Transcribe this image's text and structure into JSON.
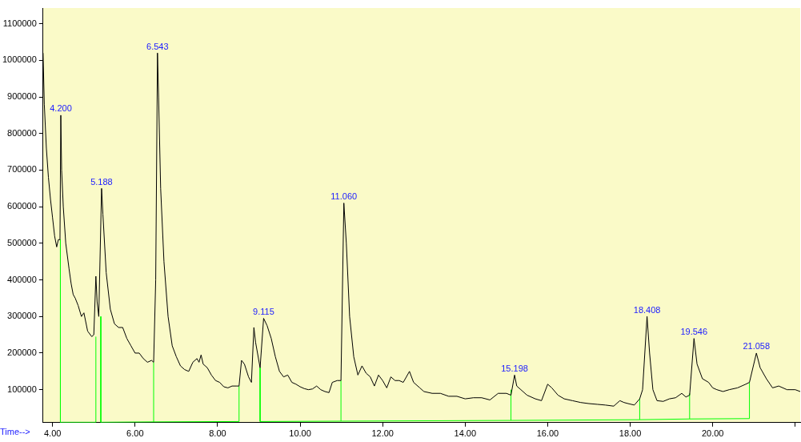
{
  "chart_data": {
    "type": "line",
    "xlabel": "Time-->",
    "x": [
      3.77,
      3.8,
      3.85,
      3.9,
      3.95,
      4.0,
      4.05,
      4.1,
      4.14,
      4.18,
      4.2,
      4.22,
      4.26,
      4.32,
      4.4,
      4.45,
      4.5,
      4.55,
      4.62,
      4.7,
      4.76,
      4.85,
      4.95,
      5.0,
      5.05,
      5.08,
      5.12,
      5.188,
      5.22,
      5.3,
      5.4,
      5.5,
      5.6,
      5.7,
      5.8,
      5.9,
      6.0,
      6.1,
      6.2,
      6.3,
      6.4,
      6.45,
      6.5,
      6.543,
      6.57,
      6.62,
      6.7,
      6.8,
      6.9,
      7.0,
      7.1,
      7.2,
      7.3,
      7.4,
      7.5,
      7.55,
      7.6,
      7.65,
      7.75,
      7.85,
      7.95,
      8.05,
      8.15,
      8.25,
      8.35,
      8.45,
      8.52,
      8.58,
      8.65,
      8.75,
      8.82,
      8.88,
      8.92,
      9.03,
      9.115,
      9.2,
      9.3,
      9.4,
      9.5,
      9.6,
      9.7,
      9.8,
      9.9,
      10.0,
      10.1,
      10.2,
      10.3,
      10.4,
      10.5,
      10.6,
      10.7,
      10.78,
      10.9,
      10.99,
      11.06,
      11.12,
      11.2,
      11.3,
      11.4,
      11.5,
      11.6,
      11.7,
      11.8,
      11.9,
      12.0,
      12.1,
      12.2,
      12.3,
      12.4,
      12.5,
      12.65,
      12.75,
      12.9,
      13.0,
      13.2,
      13.4,
      13.6,
      13.8,
      14.0,
      14.2,
      14.4,
      14.6,
      14.8,
      15.0,
      15.11,
      15.198,
      15.25,
      15.35,
      15.5,
      15.7,
      15.85,
      16.0,
      16.1,
      16.25,
      16.4,
      16.6,
      16.8,
      17.0,
      17.2,
      17.4,
      17.6,
      17.75,
      17.85,
      17.95,
      18.1,
      18.23,
      18.3,
      18.408,
      18.47,
      18.55,
      18.65,
      18.8,
      18.95,
      19.1,
      19.25,
      19.35,
      19.44,
      19.546,
      19.62,
      19.75,
      19.9,
      20.0,
      20.1,
      20.25,
      20.4,
      20.6,
      20.8,
      20.89,
      21.058,
      21.15,
      21.3,
      21.45,
      21.6,
      21.8,
      22.0,
      22.12
    ],
    "series": [
      {
        "color": "#000000",
        "values": [
          1020000,
          880000,
          760000,
          680000,
          620000,
          570000,
          520000,
          490000,
          510000,
          510000,
          850000,
          700000,
          600000,
          500000,
          430000,
          390000,
          360000,
          350000,
          330000,
          300000,
          310000,
          260000,
          245000,
          250000,
          410000,
          340000,
          300000,
          650000,
          580000,
          420000,
          320000,
          280000,
          270000,
          270000,
          240000,
          220000,
          200000,
          200000,
          185000,
          175000,
          180000,
          175000,
          400000,
          1020000,
          900000,
          650000,
          450000,
          300000,
          220000,
          190000,
          165000,
          155000,
          150000,
          175000,
          185000,
          175000,
          195000,
          170000,
          160000,
          140000,
          125000,
          120000,
          108000,
          105000,
          110000,
          110000,
          110000,
          180000,
          170000,
          135000,
          120000,
          270000,
          230000,
          160000,
          295000,
          275000,
          240000,
          190000,
          150000,
          135000,
          140000,
          120000,
          115000,
          108000,
          103000,
          100000,
          102000,
          110000,
          100000,
          95000,
          92000,
          120000,
          125000,
          125000,
          610000,
          500000,
          300000,
          190000,
          140000,
          165000,
          145000,
          135000,
          110000,
          140000,
          125000,
          105000,
          135000,
          125000,
          125000,
          120000,
          150000,
          120000,
          105000,
          95000,
          90000,
          90000,
          82000,
          82000,
          75000,
          78000,
          78000,
          72000,
          90000,
          90000,
          85000,
          140000,
          110000,
          100000,
          85000,
          75000,
          70000,
          115000,
          105000,
          85000,
          75000,
          70000,
          65000,
          62000,
          60000,
          58000,
          55000,
          70000,
          65000,
          62000,
          58000,
          75000,
          100000,
          300000,
          200000,
          100000,
          70000,
          68000,
          75000,
          78000,
          90000,
          80000,
          85000,
          240000,
          170000,
          130000,
          120000,
          105000,
          100000,
          95000,
          100000,
          105000,
          115000,
          120000,
          200000,
          160000,
          130000,
          105000,
          110000,
          100000,
          100000,
          95000
        ]
      },
      {
        "color": "#00ff00",
        "x": [
          4.19,
          4.19,
          5.05,
          5.05
        ],
        "values": [
          510000,
          11000,
          11000,
          245000
        ]
      },
      {
        "color": "#00ff00",
        "x": [
          5.17,
          5.17,
          6.45,
          6.45
        ],
        "values": [
          300000,
          11000,
          12000,
          175000
        ]
      },
      {
        "color": "#00ff00",
        "x": [
          6.45,
          8.52,
          8.52
        ],
        "values": [
          12000,
          13000,
          110000
        ]
      },
      {
        "color": "#00ff00",
        "x": [
          9.03,
          9.03,
          10.99,
          10.99
        ],
        "values": [
          160000,
          13000,
          14000,
          125000
        ]
      },
      {
        "color": "#00ff00",
        "x": [
          10.99,
          15.11,
          15.11
        ],
        "values": [
          14000,
          16000,
          100000
        ]
      },
      {
        "color": "#00ff00",
        "x": [
          15.11,
          18.23,
          18.23
        ],
        "values": [
          16000,
          18000,
          75000
        ]
      },
      {
        "color": "#00ff00",
        "x": [
          18.23,
          19.44,
          19.44
        ],
        "values": [
          18000,
          20000,
          90000
        ]
      },
      {
        "color": "#00ff00",
        "x": [
          19.44,
          20.89,
          20.89
        ],
        "values": [
          20000,
          21000,
          120000
        ]
      }
    ],
    "xlim": [
      3.77,
      22.12
    ],
    "xticks": [
      {
        "value": 4,
        "label": "4.00"
      },
      {
        "value": 6,
        "label": "6.00"
      },
      {
        "value": 8,
        "label": "8.00"
      },
      {
        "value": 10,
        "label": "10.00"
      },
      {
        "value": 12,
        "label": "12.00"
      },
      {
        "value": 14,
        "label": "14.00"
      },
      {
        "value": 16,
        "label": "16.00"
      },
      {
        "value": 18,
        "label": "18.00"
      },
      {
        "value": 20,
        "label": "20.00"
      },
      {
        "value": 22,
        "label": null
      }
    ],
    "ylim": [
      10000,
      1143000
    ],
    "yticks": [
      100000,
      200000,
      300000,
      400000,
      500000,
      600000,
      700000,
      800000,
      900000,
      1000000,
      1100000
    ],
    "grid": false,
    "legend": false,
    "marker": "none",
    "line_style": "solid",
    "annotations": [
      {
        "text": "4.200",
        "x": 4.2,
        "y": 850000
      },
      {
        "text": "5.188",
        "x": 5.188,
        "y": 650000
      },
      {
        "text": "6.543",
        "x": 6.543,
        "y": 1020000
      },
      {
        "text": "9.115",
        "x": 9.115,
        "y": 295000
      },
      {
        "text": "11.060",
        "x": 11.06,
        "y": 610000
      },
      {
        "text": "15.198",
        "x": 15.198,
        "y": 140000
      },
      {
        "text": "18.408",
        "x": 18.408,
        "y": 300000
      },
      {
        "text": "19.546",
        "x": 19.546,
        "y": 240000
      },
      {
        "text": "21.058",
        "x": 21.058,
        "y": 200000
      }
    ]
  }
}
